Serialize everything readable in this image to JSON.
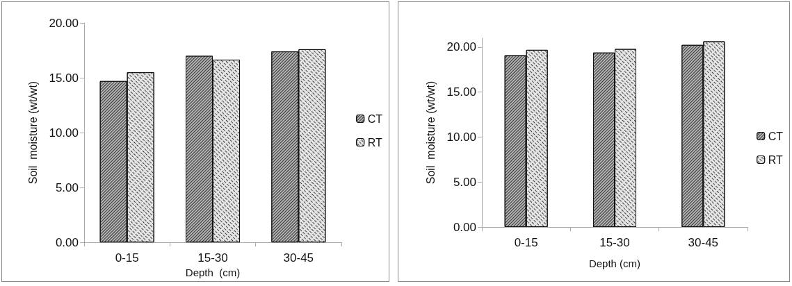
{
  "chart_data": [
    {
      "type": "bar",
      "categories": [
        "0-15",
        "15-30",
        "30-45"
      ],
      "xlabel": "Depth  (cm)",
      "ylabel": "Soil  moisture (wt/wt)",
      "series": [
        {
          "name": "CT",
          "color": "#b4b4b4",
          "values": [
            14.7,
            17.0,
            17.4
          ]
        },
        {
          "name": "RT",
          "color": "#e4e4e4",
          "values": [
            15.5,
            16.65,
            17.6
          ]
        }
      ],
      "ylim": [
        0,
        20
      ],
      "yticks": [
        {
          "value": 0,
          "label": "0.00"
        },
        {
          "value": 5,
          "label": "5.00"
        },
        {
          "value": 10,
          "label": "10.00"
        },
        {
          "value": 15,
          "label": "15.00"
        },
        {
          "value": 20,
          "label": "20.00"
        }
      ],
      "grid": false,
      "legend": "right"
    },
    {
      "type": "bar",
      "categories": [
        "0-15",
        "15-30",
        "30-45"
      ],
      "xlabel": "Depth (cm)",
      "ylabel": "Soil  moisture (wt/wt)",
      "series": [
        {
          "name": "CT",
          "color": "#b4b4b4",
          "values": [
            19.1,
            19.4,
            20.25
          ]
        },
        {
          "name": "RT",
          "color": "#e4e4e4",
          "values": [
            19.7,
            19.8,
            20.65
          ]
        }
      ],
      "ylim": [
        0,
        21
      ],
      "yticks": [
        {
          "value": 0,
          "label": "0.00"
        },
        {
          "value": 5,
          "label": "5.00"
        },
        {
          "value": 10,
          "label": "10.00"
        },
        {
          "value": 15,
          "label": "15.00"
        },
        {
          "value": 20,
          "label": "20.00"
        }
      ],
      "grid": false,
      "legend": "right"
    }
  ]
}
